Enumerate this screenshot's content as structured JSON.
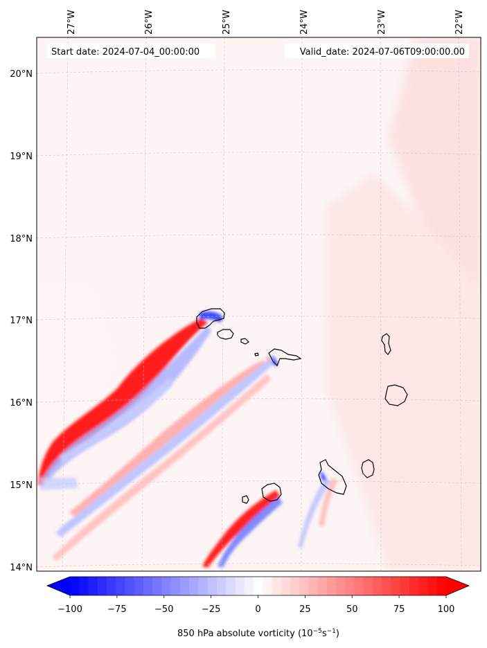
{
  "chart_data": {
    "type": "heatmap",
    "title": "850 hPa absolute vorticity",
    "header": {
      "start_date": "Start date: 2024-07-04_00:00:00",
      "valid_date": "Valid_date: 2024-07-06T09:00:00.00"
    },
    "x_ticks": [
      "27°W",
      "26°W",
      "25°W",
      "24°W",
      "23°W",
      "22°W"
    ],
    "y_ticks": [
      "20°N",
      "19°N",
      "18°N",
      "17°N",
      "16°N",
      "15°N",
      "14°N"
    ],
    "lon_range": [
      -27.4,
      -21.8
    ],
    "lat_range": [
      14.0,
      20.4
    ],
    "colorbar": {
      "label_main": "850 hPa absolute vorticity (10",
      "label_exp1": "−5",
      "label_mid": "s",
      "label_exp2": "−1",
      "label_end": ")",
      "ticks": [
        "−100",
        "−75",
        "−50",
        "−25",
        "0",
        "25",
        "50",
        "75",
        "100"
      ],
      "min": -100,
      "max": 100,
      "levels": 41,
      "colormap": "bwr"
    },
    "colors": {
      "neg_max": "#0000ff",
      "neutral": "#ffffff",
      "pos_max": "#ff0000",
      "background_field": "#fdf3f3",
      "coast": "#000000",
      "grid": "#bbbbbb"
    }
  }
}
